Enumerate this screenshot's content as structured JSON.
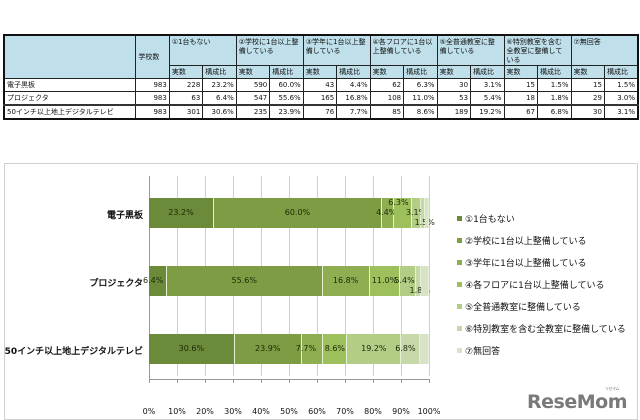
{
  "table": {
    "header": {
      "school_count": "学校数",
      "groups": [
        "①1台もない",
        "②学校に1台以上整備している",
        "③学年に1台以上整備している",
        "④各フロアに1台以上整備している",
        "⑤全普通教室に整備している",
        "⑥特別教室を含む全教室に整備している",
        "⑦無回答"
      ],
      "sub_count": "実数",
      "sub_ratio": "構成比"
    },
    "rows": [
      {
        "label": "電子黒板",
        "schools": "983",
        "cells": [
          "228",
          "23.2%",
          "590",
          "60.0%",
          "43",
          "4.4%",
          "62",
          "6.3%",
          "30",
          "3.1%",
          "15",
          "1.5%",
          "15",
          "1.5%"
        ]
      },
      {
        "label": "プロジェクタ",
        "schools": "983",
        "cells": [
          "63",
          "6.4%",
          "547",
          "55.6%",
          "165",
          "16.8%",
          "108",
          "11.0%",
          "53",
          "5.4%",
          "18",
          "1.8%",
          "29",
          "3.0%"
        ]
      },
      {
        "label": "50インチ以上地上デジタルテレビ",
        "schools": "983",
        "cells": [
          "301",
          "30.6%",
          "235",
          "23.9%",
          "76",
          "7.7%",
          "85",
          "8.6%",
          "189",
          "19.2%",
          "67",
          "6.8%",
          "30",
          "3.1%"
        ]
      }
    ]
  },
  "chart_data": {
    "type": "bar",
    "orientation": "horizontal",
    "stacked": "100%",
    "categories": [
      "電子黒板",
      "プロジェクタ",
      "50インチ以上地上デジタルテレビ"
    ],
    "series": [
      {
        "name": "①1台もない",
        "values": [
          23.2,
          6.4,
          30.6
        ],
        "color": "#6b8a3a"
      },
      {
        "name": "②学校に1台以上整備している",
        "values": [
          60.0,
          55.6,
          23.9
        ],
        "color": "#7d9c44"
      },
      {
        "name": "③学年に1台以上整備している",
        "values": [
          4.4,
          16.8,
          7.7
        ],
        "color": "#8fae52"
      },
      {
        "name": "④各フロアに1台以上整備している",
        "values": [
          6.3,
          11.0,
          8.6
        ],
        "color": "#9dbf5c"
      },
      {
        "name": "⑤全普通教室に整備している",
        "values": [
          3.1,
          5.4,
          19.2
        ],
        "color": "#b3cc86"
      },
      {
        "name": "⑥特別教室を含む全教室に整備している",
        "values": [
          1.5,
          1.8,
          6.8
        ],
        "color": "#c6d8a8"
      },
      {
        "name": "⑦無回答",
        "values": [
          1.5,
          3.0,
          3.1
        ],
        "color": "#d8e2c8"
      }
    ],
    "data_labels": [
      [
        "23.2%",
        "60.0%",
        "4.4%",
        "6.3%",
        "3.1%",
        "1.5%",
        ""
      ],
      [
        "6.4%",
        "55.6%",
        "16.8%",
        "11.0%",
        "5.4%",
        "1.8%",
        ""
      ],
      [
        "30.6%",
        "23.9%",
        "7.7%",
        "8.6%",
        "19.2%",
        "6.8%",
        ""
      ]
    ],
    "x_ticks": [
      "0%",
      "10%",
      "20%",
      "30%",
      "40%",
      "50%",
      "60%",
      "70%",
      "80%",
      "90%",
      "100%"
    ],
    "xlim": [
      0,
      100
    ],
    "grid": true,
    "legend_position": "right",
    "title": "",
    "xlabel": "",
    "ylabel": ""
  },
  "watermark": {
    "text": "ReseMom",
    "kana": "リセマム"
  }
}
